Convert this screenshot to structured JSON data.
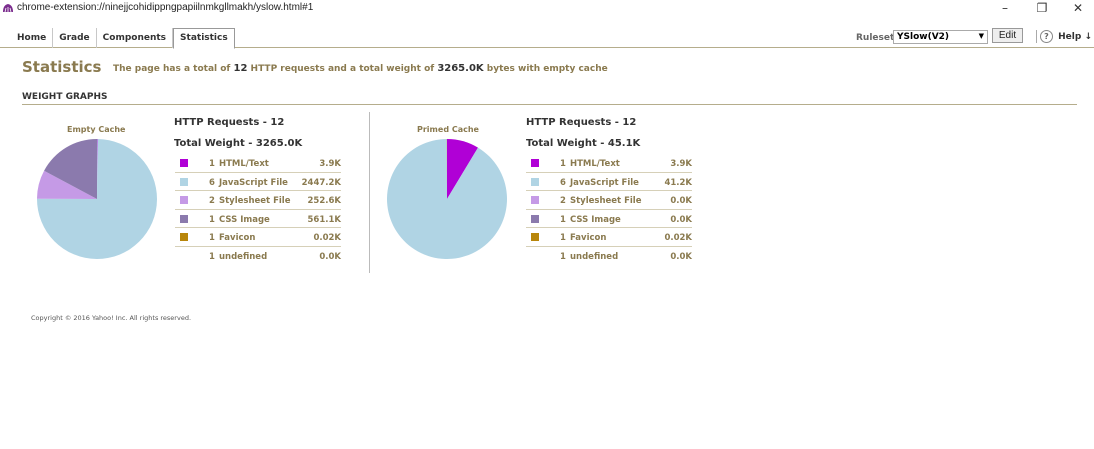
{
  "window": {
    "url": "chrome-extension://ninejjcohidippngpapiilnmkgllmakh/yslow.html#1",
    "controls": {
      "minimize": "–",
      "restore": "❐",
      "close": "✕"
    }
  },
  "tabs": [
    {
      "label": "Home",
      "active": false
    },
    {
      "label": "Grade",
      "active": false
    },
    {
      "label": "Components",
      "active": false
    },
    {
      "label": "Statistics",
      "active": true
    }
  ],
  "rulesets": {
    "label": "Rulesets",
    "selected": "YSlow(V2)"
  },
  "edit_label": "Edit",
  "help_label": "Help ↓",
  "page": {
    "title": "Statistics",
    "summary_pre": "The page has a total of",
    "requests": "12",
    "summary_mid": "HTTP requests and a total weight of",
    "weight": "3265.0K",
    "summary_post": "bytes with empty cache"
  },
  "section_title": "WEIGHT GRAPHS",
  "colors": {
    "html": "#b000d6",
    "js": "#b0d4e4",
    "css": "#c59ae6",
    "cssimg": "#8b7aad",
    "favicon": "#b8860b",
    "accent": "#8a7a4f"
  },
  "empty_cache": {
    "label": "Empty Cache",
    "requests": "HTTP Requests - 12",
    "weight": "Total Weight - 3265.0K",
    "rows": [
      {
        "key": "html",
        "count": "1",
        "type": "HTML/Text",
        "size": "3.9K"
      },
      {
        "key": "js",
        "count": "6",
        "type": "JavaScript File",
        "size": "2447.2K"
      },
      {
        "key": "css",
        "count": "2",
        "type": "Stylesheet File",
        "size": "252.6K"
      },
      {
        "key": "cssimg",
        "count": "1",
        "type": "CSS Image",
        "size": "561.1K"
      },
      {
        "key": "favicon",
        "count": "1",
        "type": "Favicon",
        "size": "0.02K"
      },
      {
        "key": "",
        "count": "1",
        "type": "undefined",
        "size": "0.0K"
      }
    ],
    "slices": [
      {
        "key": "html",
        "value": 3.9
      },
      {
        "key": "js",
        "value": 2447.2
      },
      {
        "key": "css",
        "value": 252.6
      },
      {
        "key": "cssimg",
        "value": 561.1
      },
      {
        "key": "favicon",
        "value": 0.02
      }
    ]
  },
  "primed_cache": {
    "label": "Primed Cache",
    "requests": "HTTP Requests - 12",
    "weight": "Total Weight - 45.1K",
    "rows": [
      {
        "key": "html",
        "count": "1",
        "type": "HTML/Text",
        "size": "3.9K"
      },
      {
        "key": "js",
        "count": "6",
        "type": "JavaScript File",
        "size": "41.2K"
      },
      {
        "key": "css",
        "count": "2",
        "type": "Stylesheet File",
        "size": "0.0K"
      },
      {
        "key": "cssimg",
        "count": "1",
        "type": "CSS Image",
        "size": "0.0K"
      },
      {
        "key": "favicon",
        "count": "1",
        "type": "Favicon",
        "size": "0.02K"
      },
      {
        "key": "",
        "count": "1",
        "type": "undefined",
        "size": "0.0K"
      }
    ],
    "slices": [
      {
        "key": "html",
        "value": 3.9
      },
      {
        "key": "js",
        "value": 41.2
      },
      {
        "key": "favicon",
        "value": 0.02
      }
    ]
  },
  "copyright": "Copyright © 2016 Yahoo! Inc. All rights reserved."
}
